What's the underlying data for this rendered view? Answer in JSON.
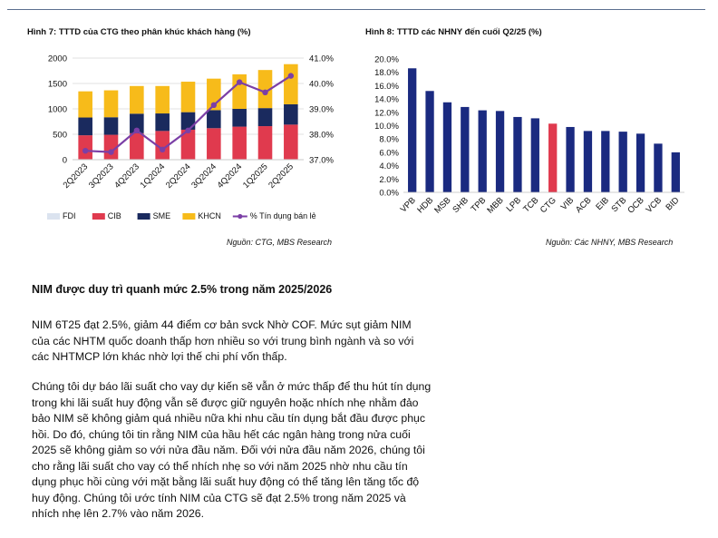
{
  "figures": {
    "fig7_title": "Hình 7: TTTD của CTG theo phân khúc khách hàng (%)",
    "fig7_source": "Nguồn: CTG, MBS Research",
    "fig8_title": "Hình 8: TTTD các NHNY đến cuối Q2/25 (%)",
    "fig8_source": "Nguồn: Các NHNY, MBS Research"
  },
  "chart_data": [
    {
      "type": "bar",
      "stacked": true,
      "title": "Hình 7: TTTD của CTG theo phân khúc khách hàng (%)",
      "categories": [
        "2Q2023",
        "3Q2023",
        "4Q2023",
        "1Q2024",
        "2Q2024",
        "3Q2024",
        "4Q2024",
        "1Q2025",
        "2Q2025"
      ],
      "series": [
        {
          "name": "FDI",
          "values": [
            10,
            10,
            10,
            10,
            10,
            10,
            10,
            10,
            10
          ],
          "color": "#dbe3ef"
        },
        {
          "name": "CIB",
          "values": [
            470,
            480,
            510,
            555,
            580,
            610,
            640,
            650,
            680
          ],
          "color": "#e03a4e"
        },
        {
          "name": "SME",
          "values": [
            350,
            345,
            385,
            345,
            345,
            355,
            350,
            355,
            400
          ],
          "color": "#1a2a5e"
        },
        {
          "name": "KHCN",
          "values": [
            515,
            530,
            545,
            540,
            600,
            620,
            680,
            750,
            790
          ],
          "color": "#f7bb1a"
        }
      ],
      "line": {
        "name": "% Tín dụng bán lẻ",
        "values": [
          37.35,
          37.3,
          38.15,
          37.4,
          38.15,
          39.15,
          40.05,
          39.65,
          40.3
        ],
        "color": "#7b3fa6"
      },
      "ylim": [
        0,
        2000
      ],
      "yticks": [
        0,
        500,
        1000,
        1500,
        2000
      ],
      "y2lim": [
        37.0,
        41.0
      ],
      "y2ticks": [
        "37.0%",
        "38.0%",
        "39.0%",
        "40.0%",
        "41.0%"
      ],
      "legend_position": "bottom"
    },
    {
      "type": "bar",
      "title": "Hình 8: TTTD các NHNY đến cuối Q2/25 (%)",
      "categories": [
        "VPB",
        "HDB",
        "MSB",
        "SHB",
        "TPB",
        "MBB",
        "LPB",
        "TCB",
        "CTG",
        "VIB",
        "ACB",
        "EIB",
        "STB",
        "OCB",
        "VCB",
        "BID"
      ],
      "values": [
        18.6,
        15.2,
        13.5,
        12.8,
        12.3,
        12.2,
        11.3,
        11.1,
        10.3,
        9.8,
        9.2,
        9.2,
        9.1,
        8.8,
        7.3,
        6.0
      ],
      "colors": [
        "#1a2a80",
        "#1a2a80",
        "#1a2a80",
        "#1a2a80",
        "#1a2a80",
        "#1a2a80",
        "#1a2a80",
        "#1a2a80",
        "#e03a4e",
        "#1a2a80",
        "#1a2a80",
        "#1a2a80",
        "#1a2a80",
        "#1a2a80",
        "#1a2a80",
        "#1a2a80"
      ],
      "ylim": [
        0,
        20
      ],
      "yticks": [
        "0.0%",
        "2.0%",
        "4.0%",
        "6.0%",
        "8.0%",
        "10.0%",
        "12.0%",
        "14.0%",
        "16.0%",
        "18.0%",
        "20.0%"
      ]
    }
  ],
  "article": {
    "heading": "NIM được duy trì quanh mức 2.5% trong năm 2025/2026",
    "p1_lines": [
      "NIM 6T25 đạt 2.5%, giảm 44 điểm cơ bản svck Nhờ COF. Mức sụt giảm NIM",
      "của các NHTM quốc doanh thấp hơn nhiều so với trung bình ngành và so với",
      "các NHTMCP lớn khác nhờ lợi thế chi phí vốn thấp."
    ],
    "p2_lines": [
      "Chúng tôi dự báo lãi suất cho vay dự kiến sẽ vẫn ở mức thấp để thu hút tín dụng",
      "trong khi lãi suất huy động vẫn sẽ được giữ nguyên hoặc nhích nhẹ nhằm đảo",
      "bảo NIM sẽ không giảm quá nhiều nữa khi nhu cầu tín dụng bắt đầu được phục",
      "hồi. Do đó, chúng tôi tin rằng NIM của hầu hết các ngân hàng trong nửa cuối",
      "2025 sẽ không giảm so với nửa đầu năm. Đối với nửa đầu năm 2026, chúng tôi",
      "cho rằng lãi suất cho vay có thể nhích nhẹ so với năm 2025 nhờ nhu cầu tín",
      "dụng phục hồi cùng với mặt bằng lãi suất huy động có thể tăng lên tăng tốc độ",
      "huy động. Chúng tôi ước tính NIM của CTG sẽ đạt 2.5% trong năm 2025 và",
      "nhích nhẹ lên 2.7% vào năm 2026."
    ]
  }
}
